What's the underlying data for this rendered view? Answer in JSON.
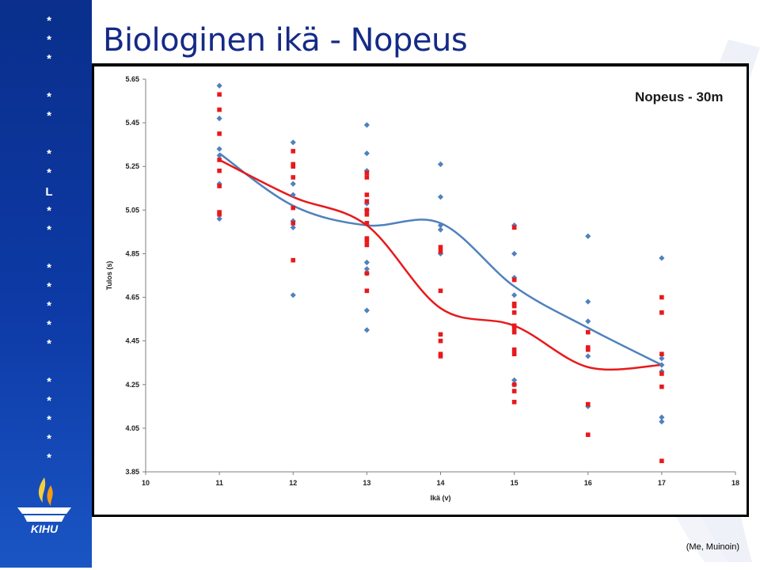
{
  "page": {
    "title": "Biologinen ikä - Nopeus",
    "source": "(Me, Muinoin)",
    "sidebar_marks": [
      "*",
      "*",
      "*",
      "*",
      "*",
      "*",
      "*",
      "L",
      "*",
      "*",
      "*",
      "*",
      "*",
      "*",
      "*",
      "*",
      "*",
      "*",
      "*",
      "*"
    ],
    "logo_text": "KIHU",
    "colors": {
      "sidebar": "#0d3aa6",
      "title": "#152a86"
    }
  },
  "chart_data": {
    "type": "scatter",
    "title": "Nopeus - 30m",
    "xlabel": "Ikä (v)",
    "ylabel": "Tulos (s)",
    "xlim": [
      10,
      18
    ],
    "ylim": [
      3.85,
      5.65
    ],
    "x_ticks": [
      "10",
      "11",
      "12",
      "13",
      "14",
      "15",
      "16",
      "17",
      "18"
    ],
    "y_ticks": [
      "3.85",
      "4.05",
      "4.25",
      "4.45",
      "4.65",
      "4.85",
      "5.05",
      "5.25",
      "5.45",
      "5.65"
    ],
    "grid": false,
    "series": [
      {
        "color": "#4f81bd",
        "marker": "diamond",
        "points": [
          [
            11,
            5.62
          ],
          [
            11,
            5.47
          ],
          [
            11,
            5.33
          ],
          [
            11,
            5.3
          ],
          [
            11,
            5.17
          ],
          [
            11,
            5.01
          ],
          [
            12,
            5.36
          ],
          [
            12,
            5.17
          ],
          [
            12,
            5.12
          ],
          [
            12,
            5.0
          ],
          [
            12,
            4.97
          ],
          [
            12,
            4.66
          ],
          [
            13,
            5.44
          ],
          [
            13,
            5.31
          ],
          [
            13,
            5.23
          ],
          [
            13,
            5.08
          ],
          [
            13,
            5.05
          ],
          [
            13,
            4.81
          ],
          [
            13,
            4.78
          ],
          [
            13,
            4.76
          ],
          [
            13,
            4.59
          ],
          [
            13,
            4.5
          ],
          [
            14,
            5.26
          ],
          [
            14,
            5.11
          ],
          [
            14,
            4.98
          ],
          [
            14,
            4.96
          ],
          [
            14,
            4.85
          ],
          [
            15,
            4.98
          ],
          [
            15,
            4.85
          ],
          [
            15,
            4.74
          ],
          [
            15,
            4.66
          ],
          [
            15,
            4.27
          ],
          [
            15,
            4.25
          ],
          [
            16,
            4.93
          ],
          [
            16,
            4.63
          ],
          [
            16,
            4.54
          ],
          [
            16,
            4.38
          ],
          [
            16,
            4.15
          ],
          [
            17,
            4.83
          ],
          [
            17,
            4.37
          ],
          [
            17,
            4.34
          ],
          [
            17,
            4.31
          ],
          [
            17,
            4.1
          ],
          [
            17,
            4.08
          ]
        ],
        "trend": [
          [
            11,
            5.31
          ],
          [
            12,
            5.07
          ],
          [
            13,
            4.98
          ],
          [
            14,
            4.99
          ],
          [
            15,
            4.7
          ],
          [
            16,
            4.51
          ],
          [
            17,
            4.34
          ]
        ]
      },
      {
        "color": "#e8191c",
        "marker": "square",
        "points": [
          [
            11,
            5.58
          ],
          [
            11,
            5.51
          ],
          [
            11,
            5.4
          ],
          [
            11,
            5.28
          ],
          [
            11,
            5.23
          ],
          [
            11,
            5.16
          ],
          [
            11,
            5.04
          ],
          [
            11,
            5.03
          ],
          [
            12,
            5.32
          ],
          [
            12,
            5.26
          ],
          [
            12,
            5.25
          ],
          [
            12,
            5.2
          ],
          [
            12,
            5.06
          ],
          [
            12,
            4.99
          ],
          [
            12,
            4.82
          ],
          [
            13,
            5.22
          ],
          [
            13,
            5.2
          ],
          [
            13,
            5.12
          ],
          [
            13,
            5.09
          ],
          [
            13,
            5.05
          ],
          [
            13,
            5.03
          ],
          [
            13,
            4.99
          ],
          [
            13,
            4.92
          ],
          [
            13,
            4.91
          ],
          [
            13,
            4.89
          ],
          [
            13,
            4.76
          ],
          [
            13,
            4.68
          ],
          [
            14,
            4.88
          ],
          [
            14,
            4.86
          ],
          [
            14,
            4.68
          ],
          [
            14,
            4.48
          ],
          [
            14,
            4.45
          ],
          [
            14,
            4.39
          ],
          [
            14,
            4.38
          ],
          [
            15,
            4.97
          ],
          [
            15,
            4.73
          ],
          [
            15,
            4.62
          ],
          [
            15,
            4.61
          ],
          [
            15,
            4.58
          ],
          [
            15,
            4.52
          ],
          [
            15,
            4.51
          ],
          [
            15,
            4.49
          ],
          [
            15,
            4.41
          ],
          [
            15,
            4.39
          ],
          [
            15,
            4.25
          ],
          [
            15,
            4.22
          ],
          [
            15,
            4.17
          ],
          [
            16,
            4.49
          ],
          [
            16,
            4.42
          ],
          [
            16,
            4.41
          ],
          [
            16,
            4.16
          ],
          [
            16,
            4.02
          ],
          [
            17,
            4.65
          ],
          [
            17,
            4.58
          ],
          [
            17,
            4.39
          ],
          [
            17,
            4.3
          ],
          [
            17,
            4.24
          ],
          [
            17,
            3.9
          ]
        ],
        "trend": [
          [
            11,
            5.28
          ],
          [
            12,
            5.11
          ],
          [
            13,
            4.98
          ],
          [
            14,
            4.6
          ],
          [
            15,
            4.52
          ],
          [
            16,
            4.33
          ],
          [
            17,
            4.34
          ]
        ]
      }
    ]
  }
}
